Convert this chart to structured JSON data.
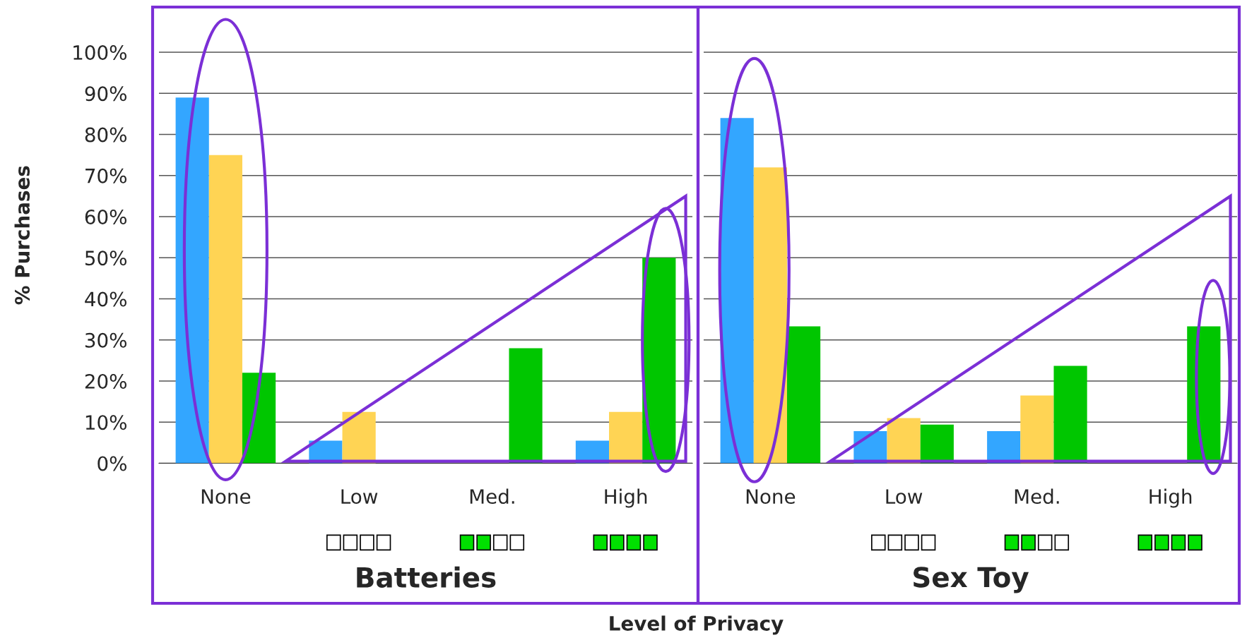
{
  "chart_data": [
    {
      "type": "bar",
      "title": "Batteries",
      "ylabel": "% Purchases",
      "xlabel": "Level of Privacy",
      "categories": [
        "None",
        "Low",
        "Med.",
        "High"
      ],
      "series": [
        {
          "color": "#33a6ff",
          "values": [
            89,
            5.5,
            null,
            5.5
          ]
        },
        {
          "color": "#ffd454",
          "values": [
            75,
            12.5,
            null,
            12.5
          ]
        },
        {
          "color": "#00c600",
          "values": [
            22,
            null,
            28,
            50
          ]
        }
      ],
      "ylim": [
        0,
        111
      ],
      "yticks": [
        {
          "value": 0,
          "label": "0%"
        },
        {
          "value": 10,
          "label": "10%"
        },
        {
          "value": 20,
          "label": "20%"
        },
        {
          "value": 30,
          "label": "30%"
        },
        {
          "value": 40,
          "label": "40%"
        },
        {
          "value": 50,
          "label": "50%"
        },
        {
          "value": 60,
          "label": "60%"
        },
        {
          "value": 70,
          "label": "70%"
        },
        {
          "value": 80,
          "label": "80%"
        },
        {
          "value": 90,
          "label": "90%"
        },
        {
          "value": 100,
          "label": "100%"
        }
      ],
      "grid": "y"
    },
    {
      "type": "bar",
      "title": "Sex Toy",
      "categories": [
        "None",
        "Low",
        "Med.",
        "High"
      ],
      "series": [
        {
          "color": "#33a6ff",
          "values": [
            84,
            7.8,
            7.8,
            null
          ]
        },
        {
          "color": "#ffd454",
          "values": [
            72,
            11,
            16.5,
            null
          ]
        },
        {
          "color": "#00c600",
          "values": [
            33.3,
            9.4,
            23.7,
            33.3
          ]
        }
      ],
      "ylim": [
        0,
        111
      ],
      "yticks": [
        {
          "value": 0,
          "label": null
        },
        {
          "value": 10,
          "label": null
        },
        {
          "value": 20,
          "label": null
        },
        {
          "value": 30,
          "label": null
        },
        {
          "value": 40,
          "label": null
        },
        {
          "value": 50,
          "label": null
        },
        {
          "value": 60,
          "label": null
        },
        {
          "value": 70,
          "label": null
        },
        {
          "value": 80,
          "label": null
        },
        {
          "value": 90,
          "label": null
        },
        {
          "value": 100,
          "label": null
        }
      ],
      "grid": "y",
      "tick_labels": "x"
    }
  ]
}
